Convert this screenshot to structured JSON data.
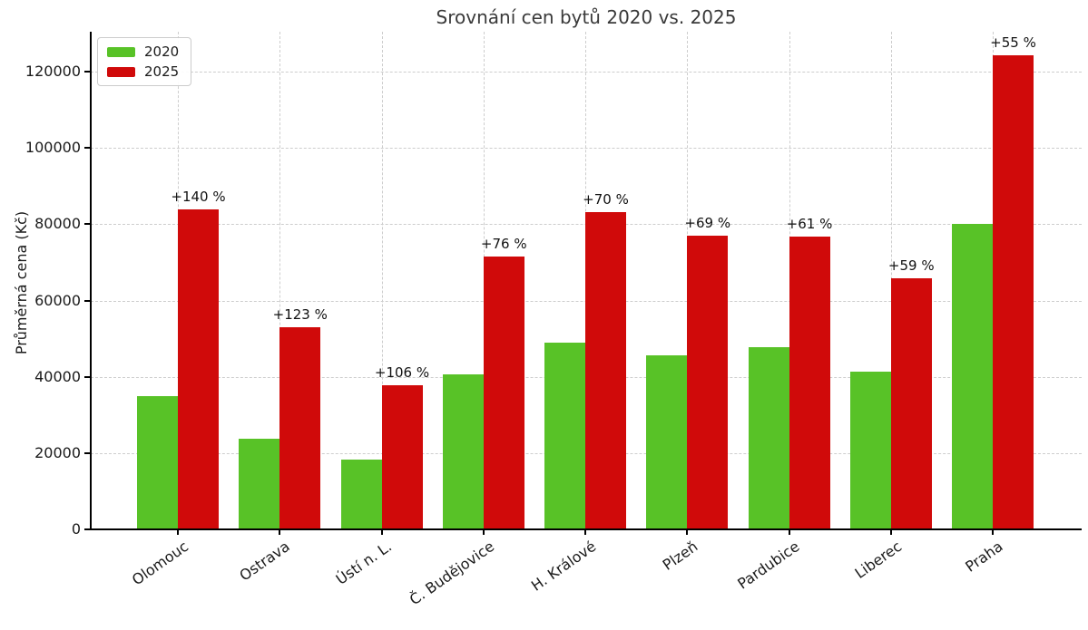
{
  "chart_data": {
    "type": "bar",
    "title": "Srovnání cen bytů 2020 vs. 2025",
    "xlabel": "",
    "ylabel": "Průměrná cena (Kč)",
    "categories": [
      "Olomouc",
      "Ostrava",
      "Ústí n. L.",
      "Č. Budějovice",
      "H. Králové",
      "Plzeň",
      "Pardubice",
      "Liberec",
      "Praha"
    ],
    "series": [
      {
        "name": "2020",
        "color": "#58c227",
        "values": [
          35000,
          23700,
          18300,
          40700,
          48900,
          45600,
          47700,
          41400,
          80200
        ]
      },
      {
        "name": "2025",
        "color": "#d00a0a",
        "values": [
          84000,
          52900,
          37700,
          71600,
          83300,
          77000,
          76800,
          65800,
          124300
        ]
      }
    ],
    "bar_labels": {
      "above_series": "2025",
      "values": [
        "+140 %",
        "+123 %",
        "+106 %",
        "+76 %",
        "+70 %",
        "+69 %",
        "+61 %",
        "+59 %",
        "+55 %"
      ]
    },
    "yticks": [
      0,
      20000,
      40000,
      60000,
      80000,
      100000,
      120000
    ],
    "ylim": [
      0,
      130500
    ],
    "grid": true,
    "grid_style": "dashed",
    "legend_position": "upper left",
    "x_tick_rotation_deg": 35
  }
}
